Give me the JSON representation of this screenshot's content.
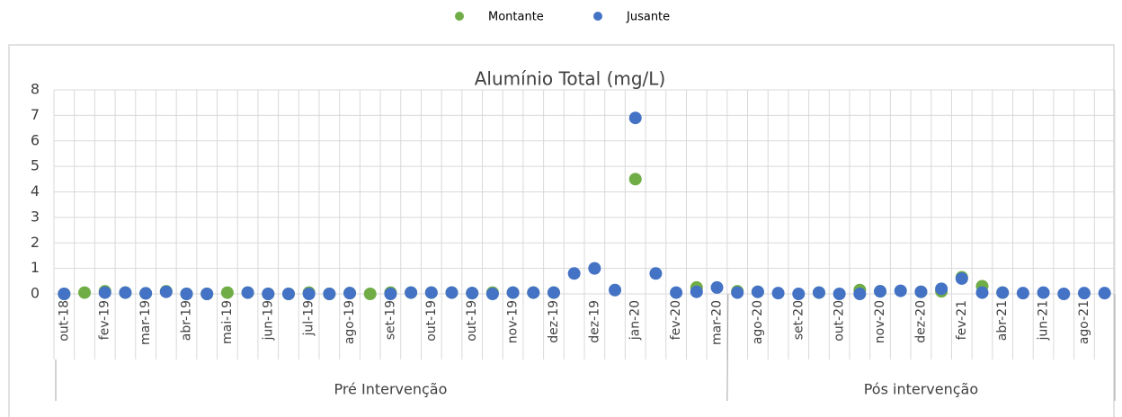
{
  "chart_data": {
    "type": "scatter",
    "title": "Alumínio Total (mg/L)",
    "categories": [
      "out-18",
      null,
      "fev-19",
      null,
      "mar-19",
      null,
      "abr-19",
      null,
      "mai-19",
      null,
      "jun-19",
      null,
      "jul-19",
      null,
      "ago-19",
      null,
      "set-19",
      null,
      "out-19",
      null,
      "out-19",
      null,
      "nov-19",
      null,
      "dez-19",
      null,
      "dez-19",
      null,
      "jan-20",
      null,
      "fev-20",
      null,
      "mar-20",
      null,
      "ago-20",
      null,
      "set-20",
      null,
      "out-20",
      null,
      "nov-20",
      null,
      "dez-20",
      null,
      "fev-21",
      null,
      "abr-21",
      null,
      "jun-21",
      null,
      "ago-21",
      null
    ],
    "groups": [
      {
        "label": "Pré Intervenção",
        "span": 33
      },
      {
        "label": "Pós intervenção",
        "span": 19
      }
    ],
    "series": [
      {
        "name": "Montante",
        "color": "#70ad47",
        "values": [
          0,
          0.05,
          0.1,
          0.05,
          0.02,
          0.1,
          0,
          0,
          0.05,
          0.05,
          0,
          0,
          0.05,
          0,
          0.03,
          0,
          0.05,
          0.05,
          0.05,
          0.05,
          0.03,
          0.05,
          0.05,
          0.05,
          0.05,
          null,
          null,
          null,
          4.5,
          null,
          null,
          0.25,
          null,
          0.1,
          0.08,
          null,
          null,
          0.05,
          null,
          0.15,
          0.1,
          null,
          0.08,
          0.1,
          0.65,
          0.3,
          0.05,
          null,
          null,
          null,
          null,
          null
        ]
      },
      {
        "name": "Jusante",
        "color": "#4472c4",
        "values": [
          0,
          null,
          0.05,
          0.05,
          0.02,
          0.08,
          0,
          0,
          null,
          0.05,
          0,
          0,
          0,
          0,
          0.03,
          null,
          0,
          0.05,
          0.05,
          0.05,
          0.03,
          0,
          0.05,
          0.05,
          0.05,
          0.8,
          1.0,
          0.15,
          6.9,
          0.8,
          0.05,
          0.08,
          0.25,
          0.05,
          0.08,
          0.03,
          0,
          0.05,
          0,
          0,
          0.1,
          0.12,
          0.08,
          0.2,
          0.6,
          0.05,
          0.05,
          0.03,
          0.05,
          0,
          0.03,
          0.03
        ]
      }
    ],
    "ylim": [
      0,
      8
    ],
    "yticks": [
      0,
      1,
      2,
      3,
      4,
      5,
      6,
      7,
      8
    ],
    "grid": true,
    "legend": "top"
  }
}
